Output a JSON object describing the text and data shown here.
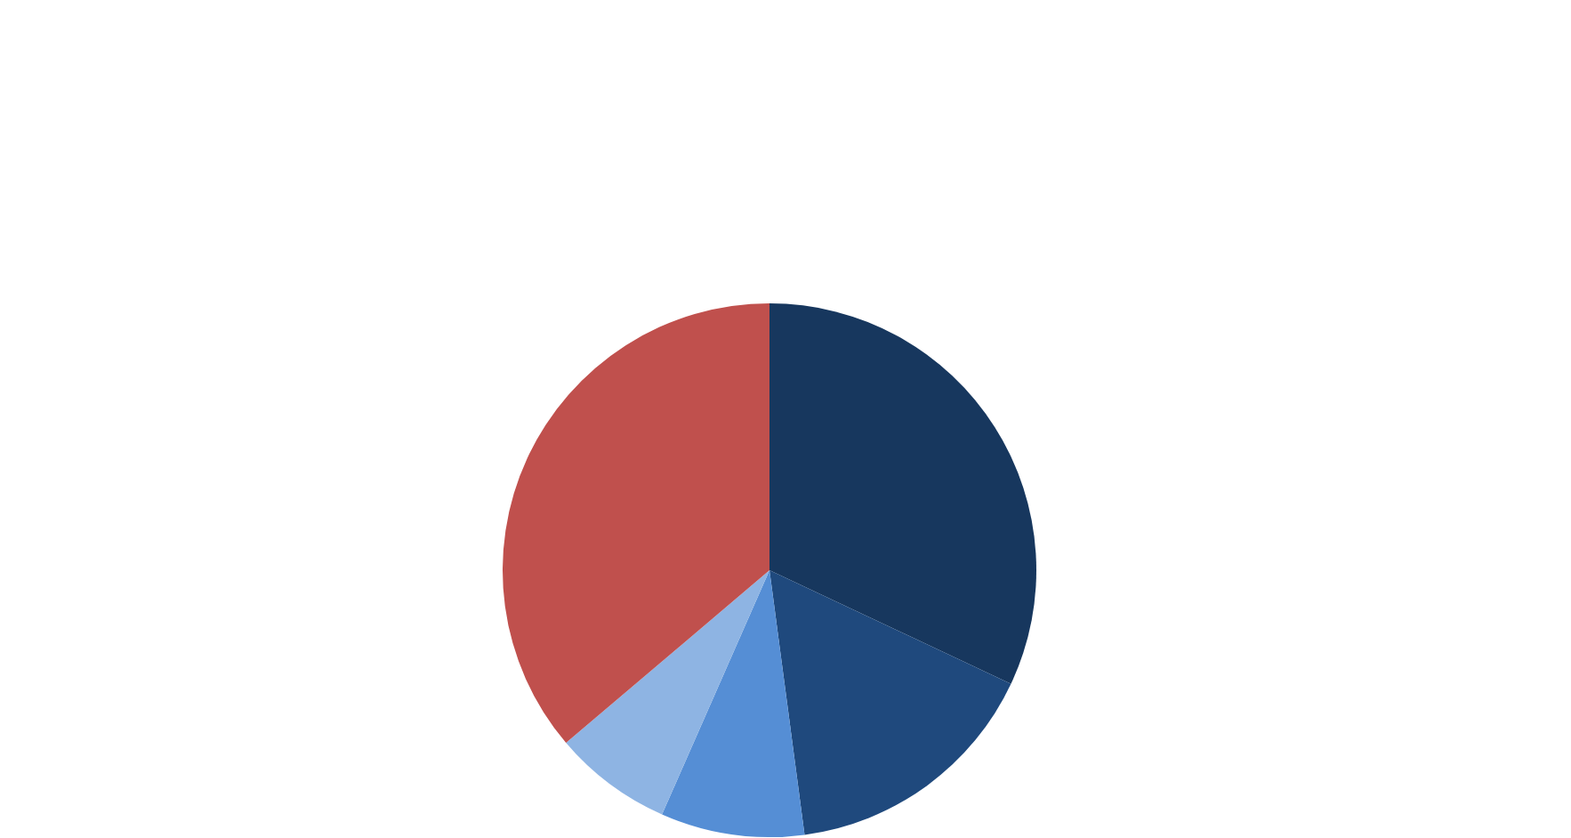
{
  "chart_data": {
    "type": "pie",
    "categories": [
      null,
      null,
      null,
      null,
      null
    ],
    "values": [
      32.0,
      15.9,
      8.7,
      7.2,
      36.2
    ],
    "colors": [
      "#17375e",
      "#1f497d",
      "#558ed5",
      "#8eb4e3",
      "#c0504d"
    ]
  }
}
